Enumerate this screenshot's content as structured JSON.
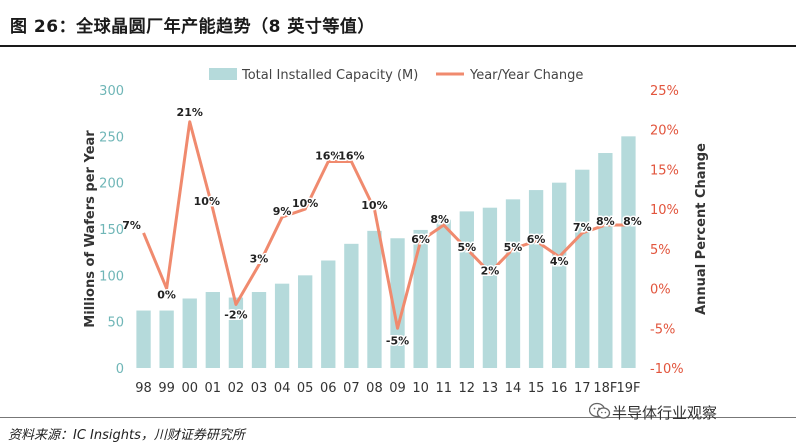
{
  "header": {
    "title": "图 26：全球晶圆厂年产能趋势（8 英寸等值）"
  },
  "footer": {
    "source": "资料来源：IC Insights，川财证券研究所",
    "watermark": "半导体行业观察",
    "watermark_icon": "wechat-icon"
  },
  "colors": {
    "bar": "#b5dadb",
    "line": "#f08a6e",
    "left_axis": "#6fb6b7",
    "right_axis": "#e2553d",
    "title": "#1a1a1a"
  },
  "chart_data": {
    "type": "bar",
    "categories": [
      "98",
      "99",
      "00",
      "01",
      "02",
      "03",
      "04",
      "05",
      "06",
      "07",
      "08",
      "09",
      "10",
      "11",
      "12",
      "13",
      "14",
      "15",
      "16",
      "17",
      "18F",
      "19F"
    ],
    "series": [
      {
        "name": "Total Installed Capacity (M)",
        "type": "bar",
        "axis": "left",
        "values": [
          62,
          62,
          75,
          82,
          76,
          82,
          91,
          100,
          116,
          134,
          148,
          140,
          149,
          160,
          169,
          173,
          182,
          192,
          200,
          214,
          232,
          250
        ]
      },
      {
        "name": "Year/Year Change",
        "type": "line",
        "axis": "right",
        "values": [
          7,
          0,
          21,
          10,
          -2,
          3,
          9,
          10,
          16,
          16,
          10,
          -5,
          6,
          8,
          5,
          2,
          5,
          6,
          4,
          7,
          8,
          8
        ],
        "labels": [
          "7%",
          "0%",
          "21%",
          "10%",
          "-2%",
          "3%",
          "9%",
          "10%",
          "16%",
          "16%",
          "10%",
          "-5%",
          "6%",
          "8%",
          "5%",
          "2%",
          "5%",
          "6%",
          "4%",
          "7%",
          "8%",
          "8%"
        ]
      }
    ],
    "ylabel": "Millions of Wafers per Year",
    "ylim": [
      0,
      300
    ],
    "yticks": [
      "0",
      "50",
      "100",
      "150",
      "200",
      "250",
      "300"
    ],
    "y2label": "Annual Percent Change",
    "y2lim": [
      -10,
      25
    ],
    "y2ticks": [
      "-10%",
      "-5%",
      "0%",
      "5%",
      "10%",
      "15%",
      "20%",
      "25%"
    ],
    "legend_position": "top-center",
    "grid": false
  }
}
